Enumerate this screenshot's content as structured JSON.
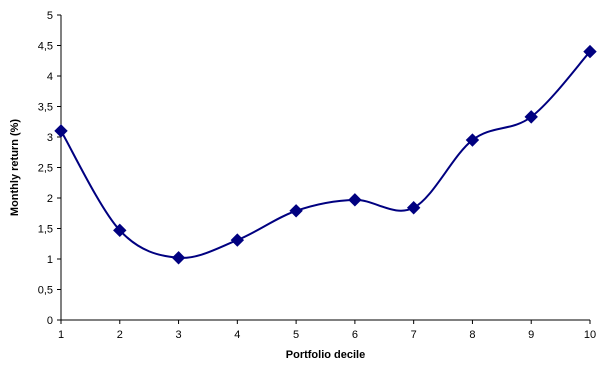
{
  "chart_data": {
    "type": "line",
    "xlabel": "Portfolio decile",
    "ylabel": "Monthly  return (%)",
    "x": [
      1,
      2,
      3,
      4,
      5,
      6,
      7,
      8,
      9,
      10
    ],
    "y_ticks": [
      "0",
      "0,5",
      "1",
      "1,5",
      "2",
      "2,5",
      "3",
      "3,5",
      "4",
      "4,5",
      "5"
    ],
    "ylim": [
      0,
      5
    ],
    "xlim": [
      1,
      10
    ],
    "series": [
      {
        "values": [
          3.1,
          1.47,
          1.02,
          1.31,
          1.79,
          1.97,
          1.84,
          2.95,
          3.33,
          4.4
        ],
        "color": "#000080",
        "marker": "diamond",
        "smooth": true
      }
    ],
    "grid": false,
    "legend": "none"
  }
}
